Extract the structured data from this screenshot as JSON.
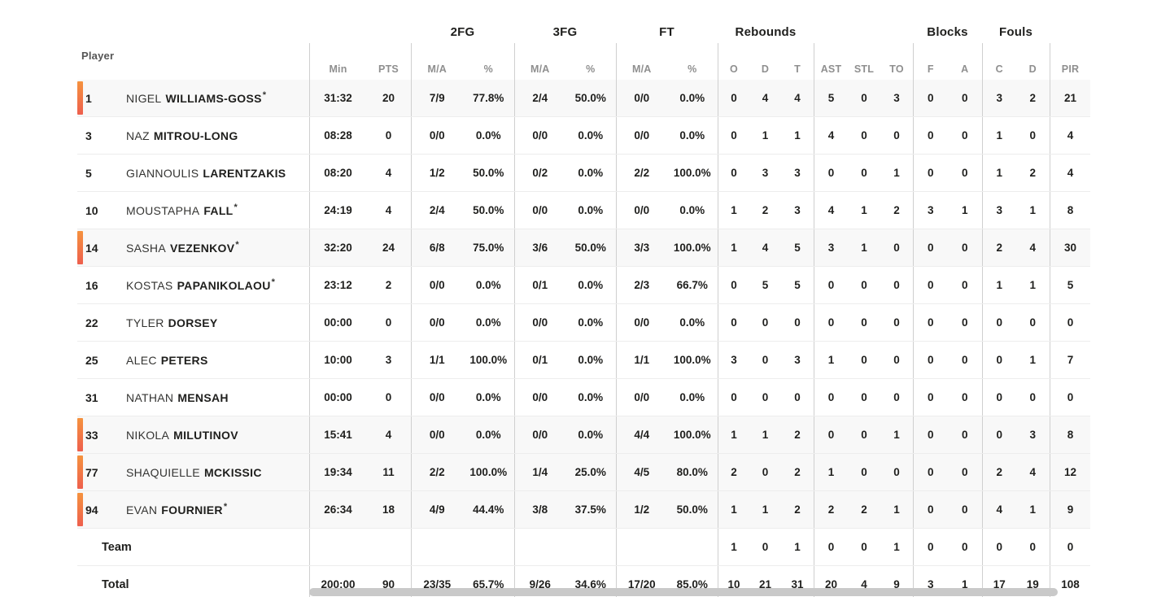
{
  "colors": {
    "marker_gradient_top": "#f5923e",
    "marker_gradient_bottom": "#ee5f4d",
    "muted_header_text": "#8f8f8f",
    "primary_text": "#1f1f1d",
    "column_divider": "#cfcfcf",
    "row_separator": "#ededed",
    "on_court_row_bg": "#f8f8f8",
    "scrollbar_thumb": "#c9c9c9"
  },
  "table": {
    "starter_mark": "*",
    "player_header": "Player",
    "groups": {
      "fg2": "2FG",
      "fg3": "3FG",
      "ft": "FT",
      "rebounds": "Rebounds",
      "blocks": "Blocks",
      "fouls": "Fouls"
    },
    "headers": {
      "min": "Min",
      "pts": "PTS",
      "ma": "M/A",
      "pct": "%",
      "reb_o": "O",
      "reb_d": "D",
      "reb_t": "T",
      "ast": "AST",
      "stl": "STL",
      "to": "TO",
      "blk_f": "F",
      "blk_a": "A",
      "foul_c": "C",
      "foul_d": "D",
      "pir": "PIR"
    },
    "players": [
      {
        "num": "1",
        "first": "NIGEL",
        "last": "WILLIAMS-GOSS",
        "starter": true,
        "on_court": true,
        "min": "31:32",
        "pts": "20",
        "fg2_ma": "7/9",
        "fg2_pct": "77.8%",
        "fg3_ma": "2/4",
        "fg3_pct": "50.0%",
        "ft_ma": "0/0",
        "ft_pct": "0.0%",
        "reb_o": "0",
        "reb_d": "4",
        "reb_t": "4",
        "ast": "5",
        "stl": "0",
        "to": "3",
        "blk_f": "0",
        "blk_a": "0",
        "foul_c": "3",
        "foul_d": "2",
        "pir": "21"
      },
      {
        "num": "3",
        "first": "NAZ",
        "last": "MITROU-LONG",
        "starter": false,
        "on_court": false,
        "min": "08:28",
        "pts": "0",
        "fg2_ma": "0/0",
        "fg2_pct": "0.0%",
        "fg3_ma": "0/0",
        "fg3_pct": "0.0%",
        "ft_ma": "0/0",
        "ft_pct": "0.0%",
        "reb_o": "0",
        "reb_d": "1",
        "reb_t": "1",
        "ast": "4",
        "stl": "0",
        "to": "0",
        "blk_f": "0",
        "blk_a": "0",
        "foul_c": "1",
        "foul_d": "0",
        "pir": "4"
      },
      {
        "num": "5",
        "first": "GIANNOULIS",
        "last": "LARENTZAKIS",
        "starter": false,
        "on_court": false,
        "min": "08:20",
        "pts": "4",
        "fg2_ma": "1/2",
        "fg2_pct": "50.0%",
        "fg3_ma": "0/2",
        "fg3_pct": "0.0%",
        "ft_ma": "2/2",
        "ft_pct": "100.0%",
        "reb_o": "0",
        "reb_d": "3",
        "reb_t": "3",
        "ast": "0",
        "stl": "0",
        "to": "1",
        "blk_f": "0",
        "blk_a": "0",
        "foul_c": "1",
        "foul_d": "2",
        "pir": "4"
      },
      {
        "num": "10",
        "first": "MOUSTAPHA",
        "last": "FALL",
        "starter": true,
        "on_court": false,
        "min": "24:19",
        "pts": "4",
        "fg2_ma": "2/4",
        "fg2_pct": "50.0%",
        "fg3_ma": "0/0",
        "fg3_pct": "0.0%",
        "ft_ma": "0/0",
        "ft_pct": "0.0%",
        "reb_o": "1",
        "reb_d": "2",
        "reb_t": "3",
        "ast": "4",
        "stl": "1",
        "to": "2",
        "blk_f": "3",
        "blk_a": "1",
        "foul_c": "3",
        "foul_d": "1",
        "pir": "8"
      },
      {
        "num": "14",
        "first": "SASHA",
        "last": "VEZENKOV",
        "starter": true,
        "on_court": true,
        "min": "32:20",
        "pts": "24",
        "fg2_ma": "6/8",
        "fg2_pct": "75.0%",
        "fg3_ma": "3/6",
        "fg3_pct": "50.0%",
        "ft_ma": "3/3",
        "ft_pct": "100.0%",
        "reb_o": "1",
        "reb_d": "4",
        "reb_t": "5",
        "ast": "3",
        "stl": "1",
        "to": "0",
        "blk_f": "0",
        "blk_a": "0",
        "foul_c": "2",
        "foul_d": "4",
        "pir": "30"
      },
      {
        "num": "16",
        "first": "KOSTAS",
        "last": "PAPANIKOLAOU",
        "starter": true,
        "on_court": false,
        "min": "23:12",
        "pts": "2",
        "fg2_ma": "0/0",
        "fg2_pct": "0.0%",
        "fg3_ma": "0/1",
        "fg3_pct": "0.0%",
        "ft_ma": "2/3",
        "ft_pct": "66.7%",
        "reb_o": "0",
        "reb_d": "5",
        "reb_t": "5",
        "ast": "0",
        "stl": "0",
        "to": "0",
        "blk_f": "0",
        "blk_a": "0",
        "foul_c": "1",
        "foul_d": "1",
        "pir": "5"
      },
      {
        "num": "22",
        "first": "TYLER",
        "last": "DORSEY",
        "starter": false,
        "on_court": false,
        "min": "00:00",
        "pts": "0",
        "fg2_ma": "0/0",
        "fg2_pct": "0.0%",
        "fg3_ma": "0/0",
        "fg3_pct": "0.0%",
        "ft_ma": "0/0",
        "ft_pct": "0.0%",
        "reb_o": "0",
        "reb_d": "0",
        "reb_t": "0",
        "ast": "0",
        "stl": "0",
        "to": "0",
        "blk_f": "0",
        "blk_a": "0",
        "foul_c": "0",
        "foul_d": "0",
        "pir": "0"
      },
      {
        "num": "25",
        "first": "ALEC",
        "last": "PETERS",
        "starter": false,
        "on_court": false,
        "min": "10:00",
        "pts": "3",
        "fg2_ma": "1/1",
        "fg2_pct": "100.0%",
        "fg3_ma": "0/1",
        "fg3_pct": "0.0%",
        "ft_ma": "1/1",
        "ft_pct": "100.0%",
        "reb_o": "3",
        "reb_d": "0",
        "reb_t": "3",
        "ast": "1",
        "stl": "0",
        "to": "0",
        "blk_f": "0",
        "blk_a": "0",
        "foul_c": "0",
        "foul_d": "1",
        "pir": "7"
      },
      {
        "num": "31",
        "first": "NATHAN",
        "last": "MENSAH",
        "starter": false,
        "on_court": false,
        "min": "00:00",
        "pts": "0",
        "fg2_ma": "0/0",
        "fg2_pct": "0.0%",
        "fg3_ma": "0/0",
        "fg3_pct": "0.0%",
        "ft_ma": "0/0",
        "ft_pct": "0.0%",
        "reb_o": "0",
        "reb_d": "0",
        "reb_t": "0",
        "ast": "0",
        "stl": "0",
        "to": "0",
        "blk_f": "0",
        "blk_a": "0",
        "foul_c": "0",
        "foul_d": "0",
        "pir": "0"
      },
      {
        "num": "33",
        "first": "NIKOLA",
        "last": "MILUTINOV",
        "starter": false,
        "on_court": true,
        "min": "15:41",
        "pts": "4",
        "fg2_ma": "0/0",
        "fg2_pct": "0.0%",
        "fg3_ma": "0/0",
        "fg3_pct": "0.0%",
        "ft_ma": "4/4",
        "ft_pct": "100.0%",
        "reb_o": "1",
        "reb_d": "1",
        "reb_t": "2",
        "ast": "0",
        "stl": "0",
        "to": "1",
        "blk_f": "0",
        "blk_a": "0",
        "foul_c": "0",
        "foul_d": "3",
        "pir": "8"
      },
      {
        "num": "77",
        "first": "SHAQUIELLE",
        "last": "MCKISSIC",
        "starter": false,
        "on_court": true,
        "min": "19:34",
        "pts": "11",
        "fg2_ma": "2/2",
        "fg2_pct": "100.0%",
        "fg3_ma": "1/4",
        "fg3_pct": "25.0%",
        "ft_ma": "4/5",
        "ft_pct": "80.0%",
        "reb_o": "2",
        "reb_d": "0",
        "reb_t": "2",
        "ast": "1",
        "stl": "0",
        "to": "0",
        "blk_f": "0",
        "blk_a": "0",
        "foul_c": "2",
        "foul_d": "4",
        "pir": "12"
      },
      {
        "num": "94",
        "first": "EVAN",
        "last": "FOURNIER",
        "starter": true,
        "on_court": true,
        "min": "26:34",
        "pts": "18",
        "fg2_ma": "4/9",
        "fg2_pct": "44.4%",
        "fg3_ma": "3/8",
        "fg3_pct": "37.5%",
        "ft_ma": "1/2",
        "ft_pct": "50.0%",
        "reb_o": "1",
        "reb_d": "1",
        "reb_t": "2",
        "ast": "2",
        "stl": "2",
        "to": "1",
        "blk_f": "0",
        "blk_a": "0",
        "foul_c": "4",
        "foul_d": "1",
        "pir": "9"
      }
    ],
    "team": {
      "label": "Team",
      "min": "",
      "pts": "",
      "fg2_ma": "",
      "fg2_pct": "",
      "fg3_ma": "",
      "fg3_pct": "",
      "ft_ma": "",
      "ft_pct": "",
      "reb_o": "1",
      "reb_d": "0",
      "reb_t": "1",
      "ast": "0",
      "stl": "0",
      "to": "1",
      "blk_f": "0",
      "blk_a": "0",
      "foul_c": "0",
      "foul_d": "0",
      "pir": "0"
    },
    "total": {
      "label": "Total",
      "min": "200:00",
      "pts": "90",
      "fg2_ma": "23/35",
      "fg2_pct": "65.7%",
      "fg3_ma": "9/26",
      "fg3_pct": "34.6%",
      "ft_ma": "17/20",
      "ft_pct": "85.0%",
      "reb_o": "10",
      "reb_d": "21",
      "reb_t": "31",
      "ast": "20",
      "stl": "4",
      "to": "9",
      "blk_f": "3",
      "blk_a": "1",
      "foul_c": "17",
      "foul_d": "19",
      "pir": "108"
    }
  }
}
